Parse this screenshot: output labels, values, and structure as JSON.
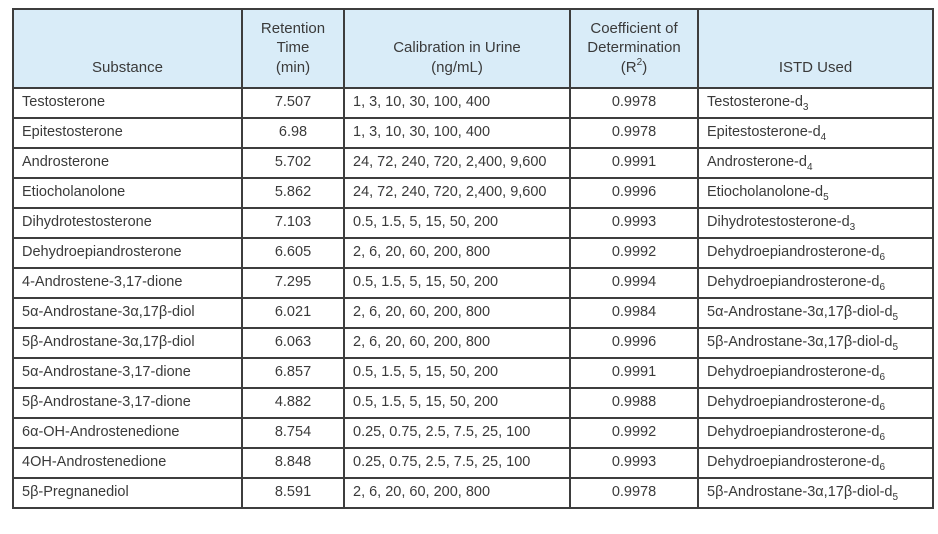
{
  "colors": {
    "header_bg": "#d9ecf8",
    "substance_col_bg": "#d9ecf8",
    "cell_bg": "#ffffff",
    "border": "#3d3d3d",
    "text": "#3a3a3a"
  },
  "table": {
    "headers": {
      "substance": "Substance",
      "retention": "Retention\nTime\n(min)",
      "calibration": "Calibration in Urine\n(ng/mL)",
      "coefficient_lines": "Coefficient of\nDetermination",
      "coefficient_r_open": "(R",
      "coefficient_r_sup": "2",
      "coefficient_r_close": ")",
      "istd": "ISTD Used"
    },
    "rows": [
      {
        "substance": "Testosterone",
        "retention": "7.507",
        "calibration": "1, 3, 10, 30, 100, 400",
        "r2": "0.9978",
        "istd_name": "Testosterone-d",
        "istd_sub": "3"
      },
      {
        "substance": "Epitestosterone",
        "retention": "6.98",
        "calibration": "1, 3, 10, 30, 100, 400",
        "r2": "0.9978",
        "istd_name": "Epitestosterone-d",
        "istd_sub": "4"
      },
      {
        "substance": "Androsterone",
        "retention": "5.702",
        "calibration": "24, 72, 240, 720, 2,400, 9,600",
        "r2": "0.9991",
        "istd_name": "Androsterone-d",
        "istd_sub": "4"
      },
      {
        "substance": "Etiocholanolone",
        "retention": "5.862",
        "calibration": "24, 72, 240, 720, 2,400, 9,600",
        "r2": "0.9996",
        "istd_name": "Etiocholanolone-d",
        "istd_sub": "5"
      },
      {
        "substance": "Dihydrotestosterone",
        "retention": "7.103",
        "calibration": "0.5, 1.5, 5, 15, 50, 200",
        "r2": "0.9993",
        "istd_name": "Dihydrotestosterone-d",
        "istd_sub": "3"
      },
      {
        "substance": "Dehydroepiandrosterone",
        "retention": "6.605",
        "calibration": "2, 6, 20, 60, 200, 800",
        "r2": "0.9992",
        "istd_name": "Dehydroepiandrosterone-d",
        "istd_sub": "6"
      },
      {
        "substance": "4-Androstene-3,17-dione",
        "retention": "7.295",
        "calibration": "0.5, 1.5, 5, 15, 50, 200",
        "r2": "0.9994",
        "istd_name": "Dehydroepiandrosterone-d",
        "istd_sub": "6"
      },
      {
        "substance": "5α-Androstane-3α,17β-diol",
        "retention": "6.021",
        "calibration": "2, 6, 20, 60, 200, 800",
        "r2": "0.9984",
        "istd_name": "5α-Androstane-3α,17β-diol-d",
        "istd_sub": "5"
      },
      {
        "substance": "5β-Androstane-3α,17β-diol",
        "retention": "6.063",
        "calibration": "2, 6, 20, 60, 200, 800",
        "r2": "0.9996",
        "istd_name": "5β-Androstane-3α,17β-diol-d",
        "istd_sub": "5"
      },
      {
        "substance": "5α-Androstane-3,17-dione",
        "retention": "6.857",
        "calibration": "0.5, 1.5, 5, 15, 50, 200",
        "r2": "0.9991",
        "istd_name": "Dehydroepiandrosterone-d",
        "istd_sub": "6"
      },
      {
        "substance": "5β-Androstane-3,17-dione",
        "retention": "4.882",
        "calibration": "0.5, 1.5, 5, 15, 50, 200",
        "r2": "0.9988",
        "istd_name": "Dehydroepiandrosterone-d",
        "istd_sub": "6"
      },
      {
        "substance": "6α-OH-Androstenedione",
        "retention": "8.754",
        "calibration": "0.25, 0.75, 2.5, 7.5, 25, 100",
        "r2": "0.9992",
        "istd_name": "Dehydroepiandrosterone-d",
        "istd_sub": "6"
      },
      {
        "substance": "4OH-Androstenedione",
        "retention": "8.848",
        "calibration": "0.25, 0.75, 2.5, 7.5, 25, 100",
        "r2": "0.9993",
        "istd_name": "Dehydroepiandrosterone-d",
        "istd_sub": "6"
      },
      {
        "substance": "5β-Pregnanediol",
        "retention": "8.591",
        "calibration": "2, 6, 20, 60, 200, 800",
        "r2": "0.9978",
        "istd_name": "5β-Androstane-3α,17β-diol-d",
        "istd_sub": "5"
      }
    ]
  }
}
